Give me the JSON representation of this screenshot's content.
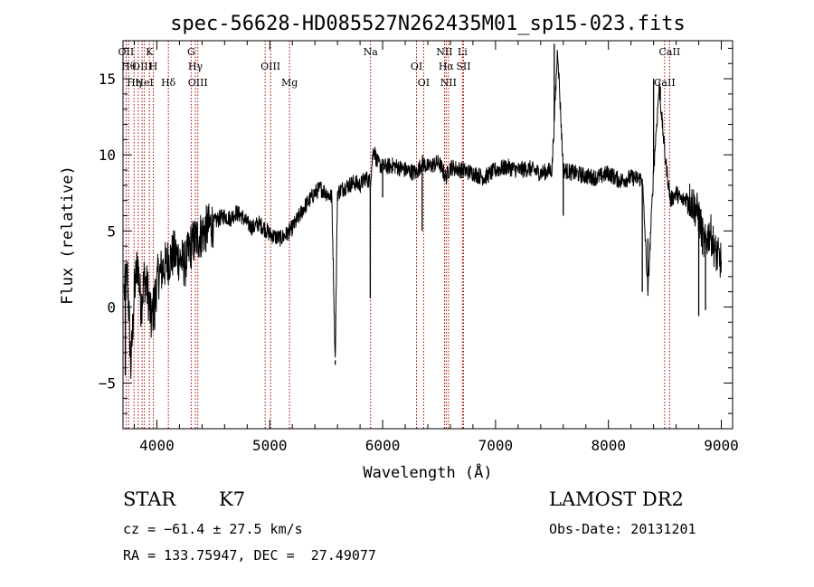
{
  "chart_data": {
    "type": "line",
    "title": "spec-56628-HD085527N262435M01_sp15-023.fits",
    "xlabel": "Wavelength (Å)",
    "ylabel": "Flux (relative)",
    "xlim": [
      3700,
      9100
    ],
    "ylim": [
      -8,
      17.5
    ],
    "xticks": [
      4000,
      5000,
      6000,
      7000,
      8000,
      9000
    ],
    "yticks": [
      -5,
      0,
      5,
      10,
      15
    ],
    "grid": false,
    "line_color": "#000000",
    "marker_color": "#aa0000",
    "series": [
      {
        "x": [
          3710,
          3740,
          3770,
          3800,
          3830,
          3860,
          3890,
          3920,
          3950,
          3980,
          4010,
          4050,
          4100,
          4150,
          4200,
          4250,
          4300,
          4350,
          4400,
          4450,
          4500,
          4550,
          4600,
          4650,
          4700,
          4750,
          4800,
          4850,
          4900,
          4950,
          5000,
          5050,
          5100,
          5150,
          5200,
          5250,
          5300,
          5350,
          5400,
          5450,
          5500,
          5550,
          5580,
          5600,
          5650,
          5700,
          5750,
          5800,
          5850,
          5890,
          5920,
          5950,
          6000,
          6100,
          6200,
          6300,
          6350,
          6400,
          6500,
          6560,
          6600,
          6700,
          6800,
          6900,
          7000,
          7100,
          7200,
          7300,
          7400,
          7500,
          7550,
          7600,
          7700,
          7800,
          7900,
          8000,
          8100,
          8200,
          8300,
          8350,
          8400,
          8450,
          8500,
          8550,
          8600,
          8650,
          8700,
          8750,
          8800,
          8850,
          8900,
          8950,
          9000
        ],
        "y": [
          1,
          2,
          -4,
          1,
          3,
          0,
          2,
          1,
          -1,
          0.5,
          2,
          2.5,
          3,
          3.5,
          3.2,
          2.8,
          4,
          4.5,
          4.8,
          5.2,
          5.5,
          5.8,
          6,
          5.8,
          6.2,
          6,
          5.5,
          5.2,
          5.5,
          5.2,
          4.8,
          4.6,
          4.5,
          4.8,
          5.2,
          5.8,
          6.5,
          7,
          7.5,
          7.8,
          7.5,
          7.2,
          -3.5,
          7.5,
          7.8,
          8,
          8.2,
          8,
          8.5,
          8.2,
          10.5,
          9.5,
          9.2,
          9.3,
          9,
          8.8,
          9.5,
          9.2,
          9.5,
          8.5,
          9.2,
          9,
          8.8,
          8.5,
          9,
          9.2,
          9,
          9.1,
          8.8,
          9,
          17,
          9,
          8.8,
          8.6,
          8.5,
          8.8,
          8.3,
          8.5,
          8.4,
          1,
          9,
          14.5,
          10,
          7,
          7.5,
          7,
          7.2,
          6.8,
          6,
          4,
          5,
          3.5,
          3
        ]
      }
    ],
    "spikes": [
      {
        "x": 3720,
        "y": -4.5
      },
      {
        "x": 3980,
        "y": -1.5
      },
      {
        "x": 5580,
        "y": -3.8
      },
      {
        "x": 5890,
        "y": 0.6
      },
      {
        "x": 6000,
        "y": 7.2
      },
      {
        "x": 6350,
        "y": 5.0
      },
      {
        "x": 7520,
        "y": 17.3
      },
      {
        "x": 7600,
        "y": 6.0
      },
      {
        "x": 8300,
        "y": 1.0
      },
      {
        "x": 8350,
        "y": 4.5
      },
      {
        "x": 8400,
        "y": 15.0
      },
      {
        "x": 8460,
        "y": 14.5
      },
      {
        "x": 8800,
        "y": -0.6
      },
      {
        "x": 8860,
        "y": -0.2
      },
      {
        "x": 8960,
        "y": 3.8
      }
    ],
    "line_markers": [
      {
        "x": 3727,
        "label": "OII"
      },
      {
        "x": 3750,
        "label": "Hθ"
      },
      {
        "x": 3798,
        "label": "Hη"
      },
      {
        "x": 3835,
        "label": ""
      },
      {
        "x": 3869,
        "label": "OIII"
      },
      {
        "x": 3889,
        "label": "HeI"
      },
      {
        "x": 3934,
        "label": "K"
      },
      {
        "x": 3969,
        "label": "H"
      },
      {
        "x": 4102,
        "label": "Hδ"
      },
      {
        "x": 4304,
        "label": "G"
      },
      {
        "x": 4341,
        "label": "Hγ"
      },
      {
        "x": 4363,
        "label": "OIII"
      },
      {
        "x": 4959,
        "label": ""
      },
      {
        "x": 5007,
        "label": "OIII"
      },
      {
        "x": 5175,
        "label": "Mg"
      },
      {
        "x": 5893,
        "label": "Na"
      },
      {
        "x": 6300,
        "label": "OI"
      },
      {
        "x": 6363,
        "label": "OI"
      },
      {
        "x": 6548,
        "label": "NII"
      },
      {
        "x": 6563,
        "label": "Hα"
      },
      {
        "x": 6583,
        "label": "NII"
      },
      {
        "x": 6707,
        "label": "Li"
      },
      {
        "x": 6716,
        "label": "SII"
      },
      {
        "x": 8498,
        "label": "CaII"
      },
      {
        "x": 8542,
        "label": "CaII"
      }
    ]
  },
  "info": {
    "object_type": "STAR",
    "subclass": "K7",
    "survey": "LAMOST DR2",
    "cz": "cz = −61.4 ± 27.5 km/s",
    "obs_date": "Obs-Date: 20131201",
    "coords": "RA = 133.75947, DEC =  27.49077"
  }
}
